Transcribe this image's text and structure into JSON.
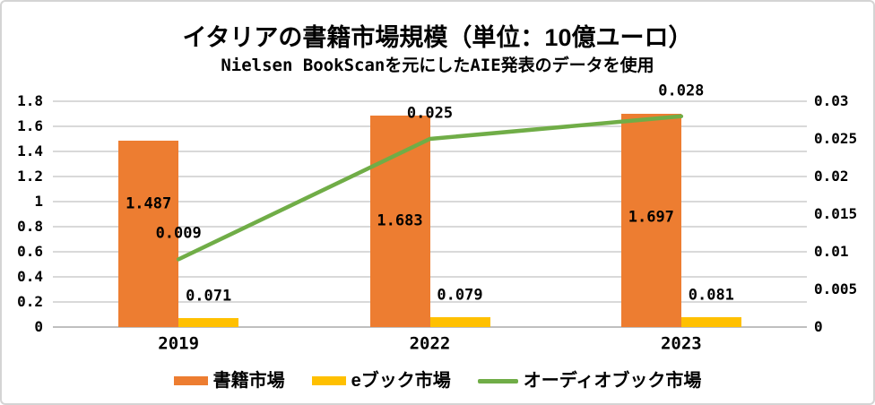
{
  "title": "イタリアの書籍市場規模（単位：10億ユーロ）",
  "subtitle": "Nielsen BookScanを元にしたAIE発表のデータを使用",
  "chart_data": {
    "type": "combo_bar_line",
    "title": "イタリアの書籍市場規模（単位：10億ユーロ）",
    "subtitle": "Nielsen BookScanを元にしたAIE発表のデータを使用",
    "categories": [
      "2019",
      "2022",
      "2023"
    ],
    "series": [
      {
        "name": "書籍市場",
        "type": "bar",
        "axis": "left",
        "color": "#ED7D31",
        "values": [
          1.487,
          1.683,
          1.697
        ],
        "labels": [
          "1.487",
          "1.683",
          "1.697"
        ]
      },
      {
        "name": "eブック市場",
        "type": "bar",
        "axis": "left",
        "color": "#FFC000",
        "values": [
          0.071,
          0.079,
          0.081
        ],
        "labels": [
          "0.071",
          "0.079",
          "0.081"
        ]
      },
      {
        "name": "オーディオブック市場",
        "type": "line",
        "axis": "right",
        "color": "#70AD47",
        "values": [
          0.009,
          0.025,
          0.028
        ],
        "labels": [
          "0.009",
          "0.025",
          "0.028"
        ]
      }
    ],
    "left_axis": {
      "min": 0,
      "max": 1.8,
      "step": 0.2,
      "ticks": [
        "0",
        "0.2",
        "0.4",
        "0.6",
        "0.8",
        "1",
        "1.2",
        "1.4",
        "1.6",
        "1.8"
      ]
    },
    "right_axis": {
      "min": 0,
      "max": 0.03,
      "step": 0.005,
      "ticks": [
        "0",
        "0.005",
        "0.01",
        "0.015",
        "0.02",
        "0.025",
        "0.03"
      ]
    },
    "grid": true,
    "legend_position": "bottom",
    "colors": {
      "gridline": "#D9D9D9",
      "axis_line": "#BFBFBF",
      "text": "#000000",
      "frame": "#D4D4D4",
      "background": "#FFFFFF"
    }
  }
}
